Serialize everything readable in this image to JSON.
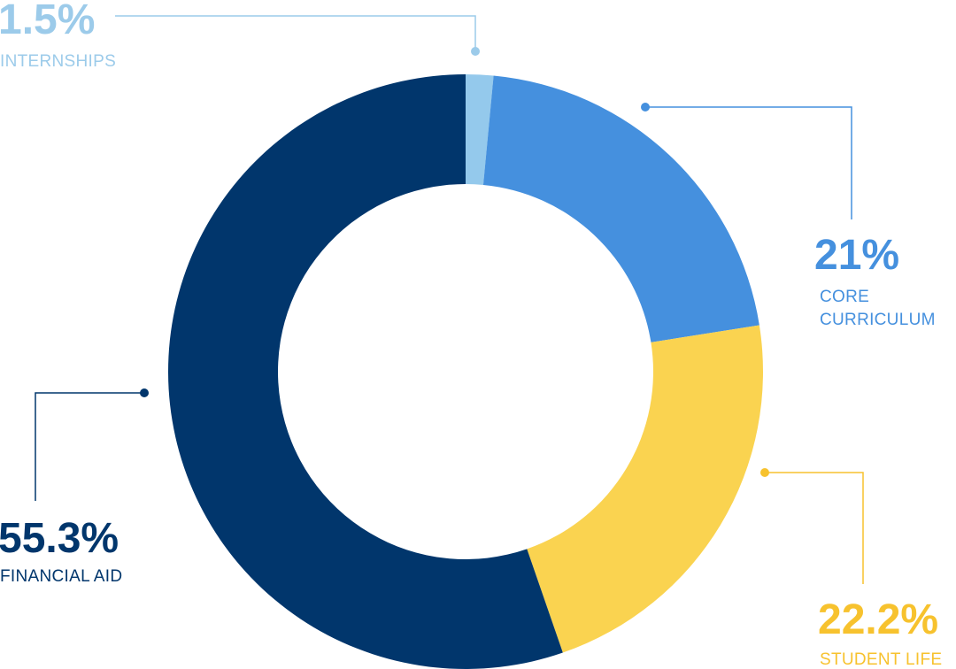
{
  "chart_data": {
    "type": "pie",
    "variant": "donut",
    "slices": [
      {
        "value": 1.5,
        "pct_label": "1.5%",
        "label_lines": [
          "INTERNSHIPS"
        ],
        "color": "#94c9ec"
      },
      {
        "value": 21,
        "pct_label": "21%",
        "label_lines": [
          "CORE",
          "CURRICULUM"
        ],
        "color": "#4590de"
      },
      {
        "value": 22.2,
        "pct_label": "22.2%",
        "label_lines": [
          "STUDENT LIFE"
        ],
        "color": "#fad350"
      },
      {
        "value": 55.3,
        "pct_label": "55.3%",
        "label_lines": [
          "FINANCIAL AID"
        ],
        "color": "#01366c"
      }
    ]
  },
  "colors": {
    "internships_text": "#9ccbea",
    "core_curriculum_text": "#4590de",
    "student_life_text": "#f7c22e",
    "financial_aid_text": "#01366c",
    "background": "#ffffff"
  }
}
